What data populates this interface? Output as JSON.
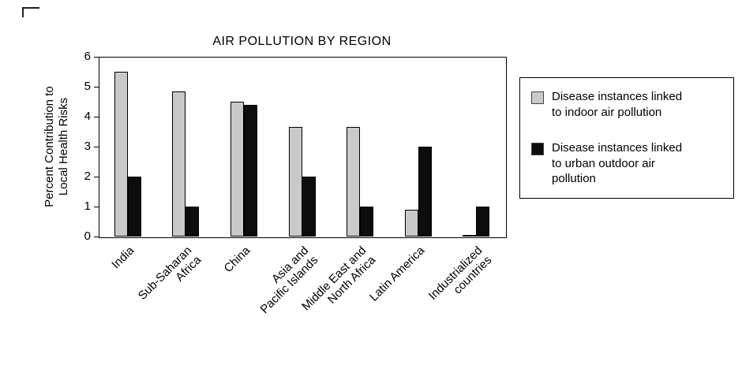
{
  "title": "AIR POLLUTION BY REGION",
  "chart_data": {
    "type": "bar",
    "title": "AIR POLLUTION BY REGION",
    "xlabel": "",
    "ylabel": "Percent Contribution to\nLocal Health Risks",
    "ylim": [
      0,
      6
    ],
    "yticks": [
      0,
      1,
      2,
      3,
      4,
      5,
      6
    ],
    "grid": false,
    "legend_position": "right",
    "categories": [
      "India",
      "Sub-Saharan\nAfrica",
      "China",
      "Asia and\nPacific Islands",
      "Middle East and\nNorth Africa",
      "Latin America",
      "Industrialized\ncountries"
    ],
    "series": [
      {
        "name": "Disease instances linked to indoor air pollution",
        "color": "#c9c9c9",
        "values": [
          5.5,
          4.85,
          4.5,
          3.65,
          3.65,
          0.9,
          0.05
        ]
      },
      {
        "name": "Disease instances linked to urban outdoor air pollution",
        "color": "#0d0d0d",
        "values": [
          2,
          1,
          4.4,
          2,
          1,
          3,
          1
        ]
      }
    ]
  },
  "colors": {
    "axis": "#000000",
    "bar_indoor": "#c9c9c9",
    "bar_outdoor": "#0d0d0d",
    "background": "#ffffff"
  }
}
